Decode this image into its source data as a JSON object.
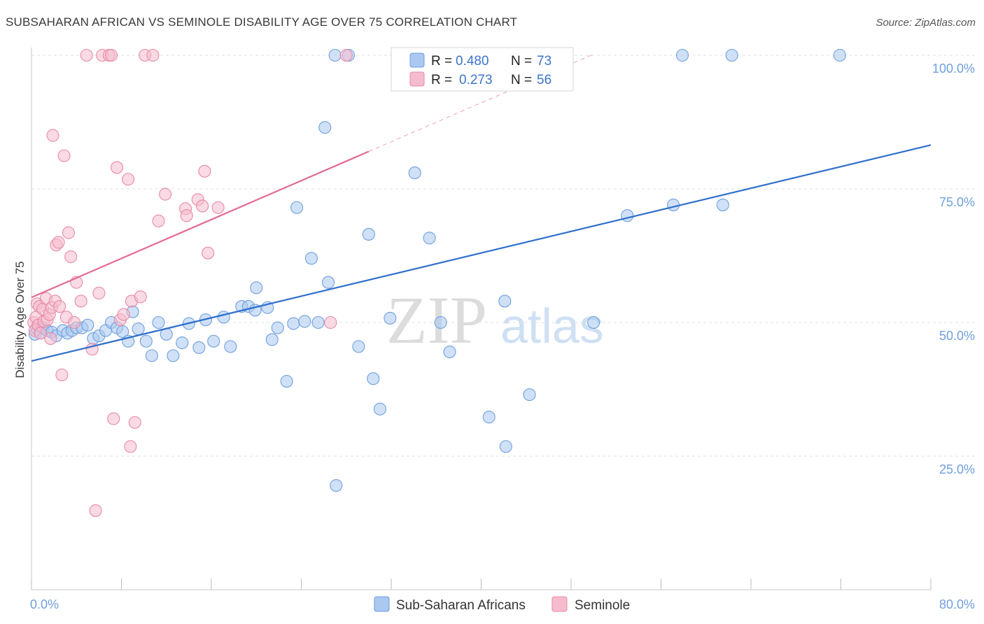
{
  "chart_data": {
    "type": "scatter",
    "title": "SUBSAHARAN AFRICAN VS SEMINOLE DISABILITY AGE OVER 75 CORRELATION CHART",
    "source": "Source: ZipAtlas.com",
    "ylabel": "Disability Age Over 75",
    "xlabel": "",
    "xlim": [
      0,
      80
    ],
    "ylim": [
      0,
      100
    ],
    "x_tick_labels": [
      {
        "value": 0,
        "label": "0.0%"
      },
      {
        "value": 80,
        "label": "80.0%"
      }
    ],
    "y_tick_labels": [
      {
        "value": 25,
        "label": "25.0%"
      },
      {
        "value": 50,
        "label": "50.0%"
      },
      {
        "value": 75,
        "label": "75.0%"
      },
      {
        "value": 100,
        "label": "100.0%"
      }
    ],
    "grid": true,
    "legend_position": "top-center",
    "stats_legend": [
      {
        "r_label": "R =",
        "r_value": "0.480",
        "n_label": "N =",
        "n_value": "73"
      },
      {
        "r_label": "R =",
        "r_value": "0.273",
        "n_label": "N =",
        "n_value": "56"
      }
    ],
    "watermark": {
      "zip": "ZIP",
      "atlas": "atlas"
    },
    "series": [
      {
        "name": "Sub-Saharan Africans",
        "color": "#6f9fdc",
        "fill": "#aac8f0",
        "trend": {
          "x": [
            0,
            80
          ],
          "y": [
            42.8,
            83.2
          ],
          "style": "solid"
        },
        "points": [
          [
            0.3,
            47.8
          ],
          [
            0.5,
            48.8
          ],
          [
            0.8,
            48.0
          ],
          [
            1.0,
            49.0
          ],
          [
            1.4,
            48.5
          ],
          [
            1.8,
            48.2
          ],
          [
            2.2,
            47.5
          ],
          [
            2.8,
            48.5
          ],
          [
            3.2,
            48.0
          ],
          [
            3.6,
            48.5
          ],
          [
            4.0,
            49.0
          ],
          [
            4.5,
            49.0
          ],
          [
            5.0,
            49.5
          ],
          [
            5.5,
            47.0
          ],
          [
            6.0,
            47.5
          ],
          [
            6.6,
            48.5
          ],
          [
            7.1,
            50.0
          ],
          [
            7.6,
            49.0
          ],
          [
            8.1,
            48.3
          ],
          [
            8.6,
            46.5
          ],
          [
            9.0,
            52.0
          ],
          [
            9.5,
            48.8
          ],
          [
            10.2,
            46.5
          ],
          [
            10.7,
            43.8
          ],
          [
            11.3,
            50.0
          ],
          [
            12.0,
            47.8
          ],
          [
            12.6,
            43.8
          ],
          [
            13.4,
            46.2
          ],
          [
            14.0,
            49.8
          ],
          [
            14.9,
            45.3
          ],
          [
            15.5,
            50.5
          ],
          [
            16.2,
            46.5
          ],
          [
            17.1,
            51.0
          ],
          [
            17.7,
            45.5
          ],
          [
            18.7,
            53.0
          ],
          [
            19.3,
            53.0
          ],
          [
            19.9,
            52.3
          ],
          [
            20.0,
            56.5
          ],
          [
            21.0,
            52.8
          ],
          [
            21.4,
            46.8
          ],
          [
            21.9,
            49.0
          ],
          [
            22.7,
            39.0
          ],
          [
            23.3,
            49.8
          ],
          [
            23.6,
            71.5
          ],
          [
            24.3,
            50.2
          ],
          [
            24.9,
            62.0
          ],
          [
            25.5,
            50.0
          ],
          [
            26.1,
            86.5
          ],
          [
            26.4,
            57.5
          ],
          [
            27.0,
            100.0
          ],
          [
            27.1,
            19.5
          ],
          [
            28.2,
            100.0
          ],
          [
            29.1,
            45.5
          ],
          [
            30.0,
            66.5
          ],
          [
            30.4,
            39.5
          ],
          [
            31.0,
            33.8
          ],
          [
            31.9,
            50.8
          ],
          [
            34.1,
            100.0
          ],
          [
            34.1,
            78.0
          ],
          [
            35.4,
            65.8
          ],
          [
            36.4,
            50.0
          ],
          [
            37.2,
            44.5
          ],
          [
            40.7,
            32.3
          ],
          [
            42.1,
            54.0
          ],
          [
            42.2,
            26.8
          ],
          [
            44.3,
            36.5
          ],
          [
            50.0,
            50.0
          ],
          [
            53.0,
            70.0
          ],
          [
            57.1,
            72.0
          ],
          [
            57.9,
            100.0
          ],
          [
            61.5,
            72.0
          ],
          [
            62.3,
            100.0
          ],
          [
            71.9,
            100.0
          ]
        ]
      },
      {
        "name": "Seminole",
        "color": "#e78aa5",
        "fill": "#f5bccd",
        "trend": {
          "x": [
            0,
            30
          ],
          "y": [
            54.7,
            82.0
          ],
          "style": "solid",
          "dashed_extension_to_x": 50
        },
        "points": [
          [
            0.2,
            50.0
          ],
          [
            0.3,
            48.5
          ],
          [
            0.4,
            51.0
          ],
          [
            0.5,
            53.5
          ],
          [
            0.6,
            49.5
          ],
          [
            0.7,
            53.0
          ],
          [
            0.8,
            48.0
          ],
          [
            1.0,
            52.5
          ],
          [
            1.1,
            50.2
          ],
          [
            1.3,
            54.5
          ],
          [
            1.4,
            50.5
          ],
          [
            1.6,
            51.5
          ],
          [
            1.7,
            47.0
          ],
          [
            1.8,
            52.8
          ],
          [
            1.9,
            85.0
          ],
          [
            2.1,
            54.0
          ],
          [
            2.2,
            64.5
          ],
          [
            2.4,
            65.0
          ],
          [
            2.5,
            53.0
          ],
          [
            2.7,
            40.2
          ],
          [
            2.9,
            81.2
          ],
          [
            3.1,
            51.0
          ],
          [
            3.3,
            66.8
          ],
          [
            3.5,
            62.3
          ],
          [
            3.8,
            50.0
          ],
          [
            4.0,
            57.5
          ],
          [
            4.4,
            54.0
          ],
          [
            4.9,
            100.0
          ],
          [
            5.4,
            45.0
          ],
          [
            5.7,
            14.8
          ],
          [
            6.0,
            55.5
          ],
          [
            6.3,
            100.0
          ],
          [
            6.9,
            100.0
          ],
          [
            7.1,
            100.0
          ],
          [
            7.3,
            32.0
          ],
          [
            7.6,
            79.0
          ],
          [
            7.9,
            50.5
          ],
          [
            8.2,
            51.5
          ],
          [
            8.6,
            76.8
          ],
          [
            8.8,
            26.8
          ],
          [
            8.9,
            54.0
          ],
          [
            9.2,
            31.3
          ],
          [
            9.7,
            54.8
          ],
          [
            10.1,
            100.0
          ],
          [
            10.8,
            100.0
          ],
          [
            11.3,
            69.0
          ],
          [
            11.9,
            74.0
          ],
          [
            13.7,
            71.3
          ],
          [
            13.8,
            70.0
          ],
          [
            14.8,
            73.0
          ],
          [
            15.2,
            71.8
          ],
          [
            15.4,
            78.3
          ],
          [
            15.7,
            63.0
          ],
          [
            16.6,
            71.5
          ],
          [
            26.6,
            50.0
          ],
          [
            28.0,
            100.0
          ]
        ]
      }
    ]
  }
}
